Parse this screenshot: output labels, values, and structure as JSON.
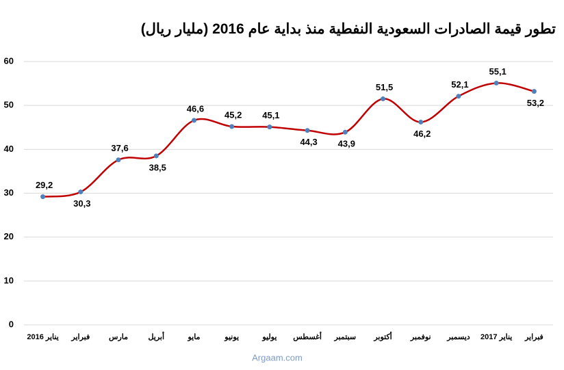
{
  "chart_data": {
    "type": "line",
    "title": "تطور قيمة الصادرات السعودية النفطية منذ بداية عام 2016  (مليار ريال)",
    "source": "Argaam.com",
    "categories": [
      "يناير 2016",
      "فبراير",
      "مارس",
      "أبريل",
      "مايو",
      "يونيو",
      "يوليو",
      "أغسطس",
      "سبتمبر",
      "أكتوبر",
      "نوفمبر",
      "ديسمبر",
      "يناير 2017",
      "فبراير"
    ],
    "values": [
      29.2,
      30.3,
      37.6,
      38.5,
      46.6,
      45.2,
      45.1,
      44.3,
      43.9,
      51.5,
      46.2,
      52.1,
      55.1,
      53.2
    ],
    "value_labels": [
      "29,2",
      "30,3",
      "37,6",
      "38,5",
      "46,6",
      "45,2",
      "45,1",
      "44,3",
      "43,9",
      "51,5",
      "46,2",
      "52,1",
      "55,1",
      "53,2"
    ],
    "color": "#c00000",
    "marker_color": "#4f81bd",
    "ylim": [
      0,
      60
    ],
    "yticks": [
      0,
      10,
      20,
      30,
      40,
      50,
      60
    ],
    "grid": true
  }
}
